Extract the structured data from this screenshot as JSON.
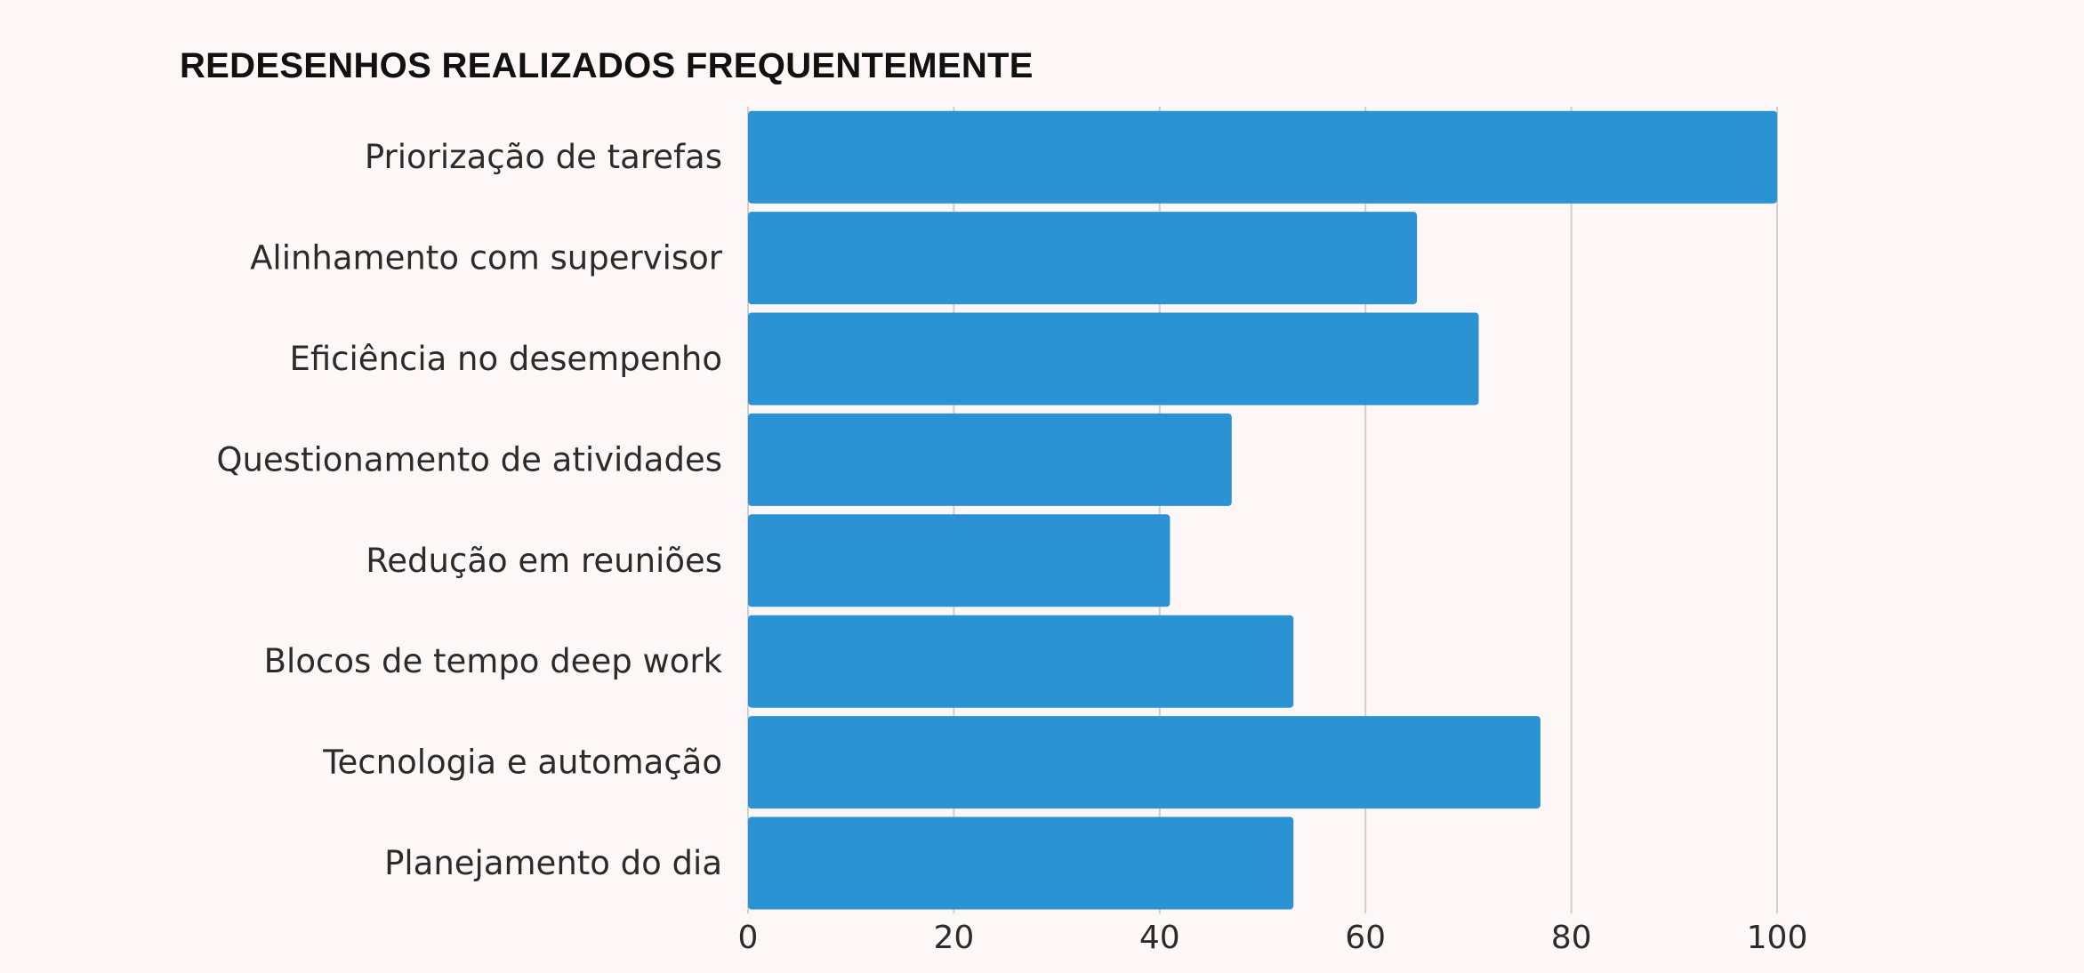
{
  "chart_data": {
    "type": "bar",
    "orientation": "horizontal",
    "title": "REDESENHOS REALIZADOS FREQUENTEMENTE",
    "categories": [
      "Priorização de tarefas",
      "Alinhamento com supervisor",
      "Eficiência no desempenho",
      "Questionamento de atividades",
      "Redução em reuniões",
      "Blocos de tempo deep work",
      "Tecnologia e automação",
      "Planejamento do dia"
    ],
    "values": [
      100,
      65,
      71,
      47,
      41,
      53,
      77,
      53
    ],
    "xlim": [
      0,
      100
    ],
    "xticks": [
      "0",
      "20",
      "40",
      "60",
      "80",
      "100"
    ],
    "grid": "vertical",
    "colors": {
      "bar": "#2b92d4",
      "grid": "#cfcfcf",
      "background": "#fdf7f8"
    }
  }
}
